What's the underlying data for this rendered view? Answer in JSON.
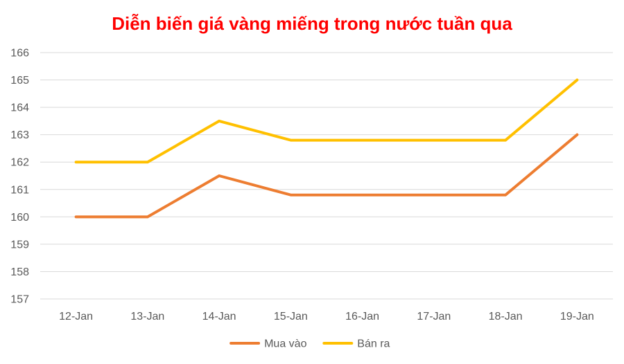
{
  "chart_data": {
    "type": "line",
    "title": "Diễn biến giá vàng miếng trong nước tuần qua",
    "xlabel": "",
    "ylabel": "",
    "categories": [
      "12-Jan",
      "13-Jan",
      "14-Jan",
      "15-Jan",
      "16-Jan",
      "17-Jan",
      "18-Jan",
      "19-Jan"
    ],
    "ylim": [
      157,
      166
    ],
    "yticks": [
      "157",
      "158",
      "159",
      "160",
      "161",
      "162",
      "163",
      "164",
      "165",
      "166"
    ],
    "grid": true,
    "legend_position": "bottom",
    "series": [
      {
        "name": "Mua vào",
        "color": "#ed7d31",
        "values": [
          160,
          160,
          161.5,
          160.8,
          160.8,
          160.8,
          160.8,
          163
        ]
      },
      {
        "name": "Bán ra",
        "color": "#ffc000",
        "values": [
          162,
          162,
          163.5,
          162.8,
          162.8,
          162.8,
          162.8,
          165
        ]
      }
    ]
  },
  "colors": {
    "title": "#ff0000",
    "grid": "#d9d9d9",
    "tick_text": "#595959"
  }
}
